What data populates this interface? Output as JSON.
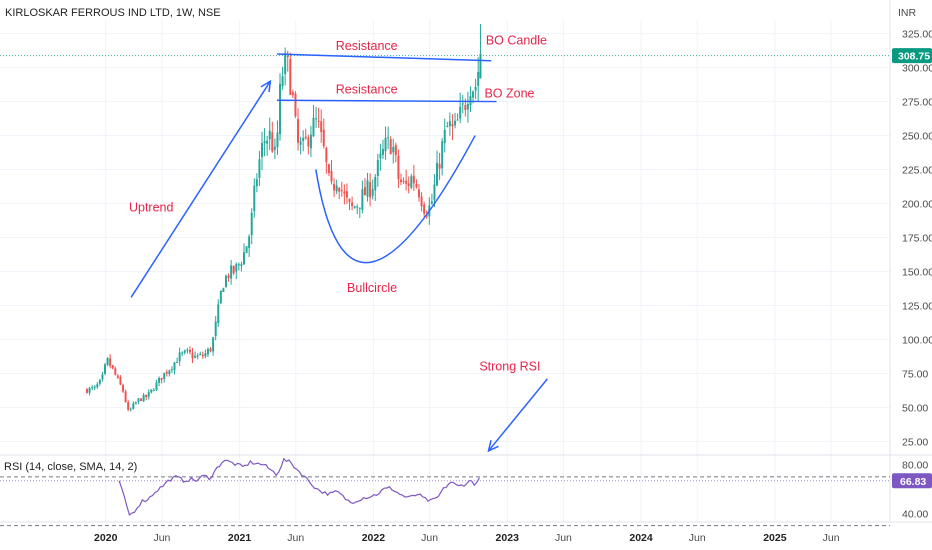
{
  "title": "KIRLOSKAR FERROUS IND LTD, 1W, NSE",
  "currency": "INR",
  "colors": {
    "up": "#26a69a",
    "down": "#ef5350",
    "annotation_line": "#2962ff",
    "annotation_text": "#e5264a",
    "rsi_line": "#7e57c2",
    "price_badge": "#089981",
    "rsi_badge": "#7e57c2",
    "grid": "#f0f3fa"
  },
  "chart_data": [
    {
      "type": "candlestick",
      "name": "price",
      "ylim": [
        15,
        335
      ],
      "yticks": [
        "325.00",
        "300.00",
        "275.00",
        "250.00",
        "225.00",
        "200.00",
        "175.00",
        "150.00",
        "125.00",
        "100.00",
        "75.00",
        "50.00",
        "25.00"
      ],
      "ytick_values": [
        325,
        300,
        275,
        250,
        225,
        200,
        175,
        150,
        125,
        100,
        75,
        50,
        25
      ],
      "xticks": [
        {
          "label": "2020",
          "t": 2020.0,
          "bold": true
        },
        {
          "label": "Jun",
          "t": 2020.42,
          "bold": false
        },
        {
          "label": "2021",
          "t": 2021.0,
          "bold": true
        },
        {
          "label": "Jun",
          "t": 2021.42,
          "bold": false
        },
        {
          "label": "2022",
          "t": 2022.0,
          "bold": true
        },
        {
          "label": "Jun",
          "t": 2022.42,
          "bold": false
        },
        {
          "label": "2023",
          "t": 2023.0,
          "bold": true
        },
        {
          "label": "Jun",
          "t": 2023.42,
          "bold": false
        },
        {
          "label": "2024",
          "t": 2024.0,
          "bold": true
        },
        {
          "label": "Jun",
          "t": 2024.42,
          "bold": false
        },
        {
          "label": "2025",
          "t": 2025.0,
          "bold": true
        },
        {
          "label": "Jun",
          "t": 2025.42,
          "bold": false
        }
      ],
      "last_price": "308.75",
      "last_price_value": 308.75,
      "path": [
        [
          2019.86,
          63
        ],
        [
          2019.92,
          64
        ],
        [
          2019.97,
          70
        ],
        [
          2020.01,
          85
        ],
        [
          2020.05,
          78
        ],
        [
          2020.09,
          70
        ],
        [
          2020.13,
          62
        ],
        [
          2020.17,
          46
        ],
        [
          2020.21,
          52
        ],
        [
          2020.25,
          56
        ],
        [
          2020.31,
          58
        ],
        [
          2020.37,
          66
        ],
        [
          2020.43,
          74
        ],
        [
          2020.49,
          80
        ],
        [
          2020.55,
          88
        ],
        [
          2020.61,
          90
        ],
        [
          2020.67,
          87
        ],
        [
          2020.73,
          88
        ],
        [
          2020.79,
          94
        ],
        [
          2020.83,
          115
        ],
        [
          2020.87,
          140
        ],
        [
          2020.91,
          148
        ],
        [
          2020.96,
          150
        ],
        [
          2021.0,
          156
        ],
        [
          2021.04,
          165
        ],
        [
          2021.08,
          180
        ],
        [
          2021.12,
          215
        ],
        [
          2021.16,
          238
        ],
        [
          2021.19,
          248
        ],
        [
          2021.23,
          250
        ],
        [
          2021.27,
          232
        ],
        [
          2021.31,
          292
        ],
        [
          2021.35,
          305
        ],
        [
          2021.39,
          285
        ],
        [
          2021.43,
          243
        ],
        [
          2021.48,
          240
        ],
        [
          2021.53,
          255
        ],
        [
          2021.58,
          260
        ],
        [
          2021.63,
          238
        ],
        [
          2021.68,
          208
        ],
        [
          2021.73,
          220
        ],
        [
          2021.78,
          205
        ],
        [
          2021.83,
          195
        ],
        [
          2021.88,
          200
        ],
        [
          2021.94,
          208
        ],
        [
          2021.99,
          213
        ],
        [
          2022.04,
          228
        ],
        [
          2022.09,
          242
        ],
        [
          2022.14,
          245
        ],
        [
          2022.19,
          217
        ],
        [
          2022.24,
          212
        ],
        [
          2022.29,
          220
        ],
        [
          2022.34,
          210
        ],
        [
          2022.39,
          195
        ],
        [
          2022.43,
          198
        ],
        [
          2022.48,
          225
        ],
        [
          2022.52,
          245
        ],
        [
          2022.56,
          258
        ],
        [
          2022.6,
          252
        ],
        [
          2022.64,
          262
        ],
        [
          2022.68,
          272
        ],
        [
          2022.72,
          288
        ],
        [
          2022.76,
          285
        ],
        [
          2022.8,
          308
        ]
      ]
    },
    {
      "type": "line",
      "name": "rsi",
      "label": "RSI (14, close, SMA, 14, 2)",
      "ylim": [
        33,
        88
      ],
      "yticks": [
        "80.00",
        "40.00"
      ],
      "ytick_values": [
        80,
        40
      ],
      "band": [
        70,
        30
      ],
      "last_value": "66.83",
      "last_value_num": 66.83,
      "path": [
        [
          2020.1,
          67
        ],
        [
          2020.14,
          52
        ],
        [
          2020.18,
          38
        ],
        [
          2020.22,
          43
        ],
        [
          2020.27,
          50
        ],
        [
          2020.32,
          52
        ],
        [
          2020.37,
          58
        ],
        [
          2020.42,
          62
        ],
        [
          2020.48,
          68
        ],
        [
          2020.53,
          70
        ],
        [
          2020.58,
          67
        ],
        [
          2020.63,
          68
        ],
        [
          2020.68,
          67
        ],
        [
          2020.73,
          71
        ],
        [
          2020.78,
          69
        ],
        [
          2020.83,
          77
        ],
        [
          2020.88,
          84
        ],
        [
          2020.93,
          82
        ],
        [
          2020.98,
          80
        ],
        [
          2021.03,
          78
        ],
        [
          2021.08,
          82
        ],
        [
          2021.13,
          81
        ],
        [
          2021.18,
          80
        ],
        [
          2021.23,
          76
        ],
        [
          2021.28,
          72
        ],
        [
          2021.33,
          84
        ],
        [
          2021.38,
          82
        ],
        [
          2021.43,
          76
        ],
        [
          2021.48,
          71
        ],
        [
          2021.53,
          65
        ],
        [
          2021.58,
          60
        ],
        [
          2021.63,
          57
        ],
        [
          2021.68,
          56
        ],
        [
          2021.73,
          58
        ],
        [
          2021.78,
          53
        ],
        [
          2021.83,
          49
        ],
        [
          2021.88,
          51
        ],
        [
          2021.93,
          53
        ],
        [
          2021.98,
          54
        ],
        [
          2022.03,
          56
        ],
        [
          2022.08,
          60
        ],
        [
          2022.13,
          61
        ],
        [
          2022.18,
          57
        ],
        [
          2022.23,
          54
        ],
        [
          2022.28,
          53
        ],
        [
          2022.33,
          56
        ],
        [
          2022.38,
          52
        ],
        [
          2022.43,
          50
        ],
        [
          2022.48,
          53
        ],
        [
          2022.53,
          61
        ],
        [
          2022.58,
          66
        ],
        [
          2022.63,
          62
        ],
        [
          2022.68,
          64
        ],
        [
          2022.73,
          67
        ],
        [
          2022.76,
          64
        ],
        [
          2022.8,
          69
        ]
      ]
    }
  ],
  "annotations": {
    "resistance_upper": "Resistance",
    "resistance_lower": "Resistance",
    "bo_candle": "BO Candle",
    "bo_zone": "BO Zone",
    "uptrend": "Uptrend",
    "bullcircle": "Bullcircle",
    "strong_rsi": "Strong RSI"
  },
  "annotation_lines": {
    "upper_resistance": {
      "t1": 2021.28,
      "p1": 310,
      "t2": 2022.88,
      "p2": 305
    },
    "lower_resistance": {
      "t1": 2021.28,
      "p1": 276,
      "t2": 2022.92,
      "p2": 275
    },
    "uptrend_arrow": {
      "t1": 2020.19,
      "p1": 131,
      "t2": 2021.23,
      "p2": 290
    },
    "rsi_arrow": {
      "t1": 2023.3,
      "p1": 71,
      "t2": 2022.86,
      "p2": 18
    },
    "bowl": {
      "t_start": 2021.57,
      "p_start": 225,
      "t_mid": 2021.99,
      "p_mid": 157,
      "t_end": 2022.76,
      "p_end": 250
    }
  }
}
